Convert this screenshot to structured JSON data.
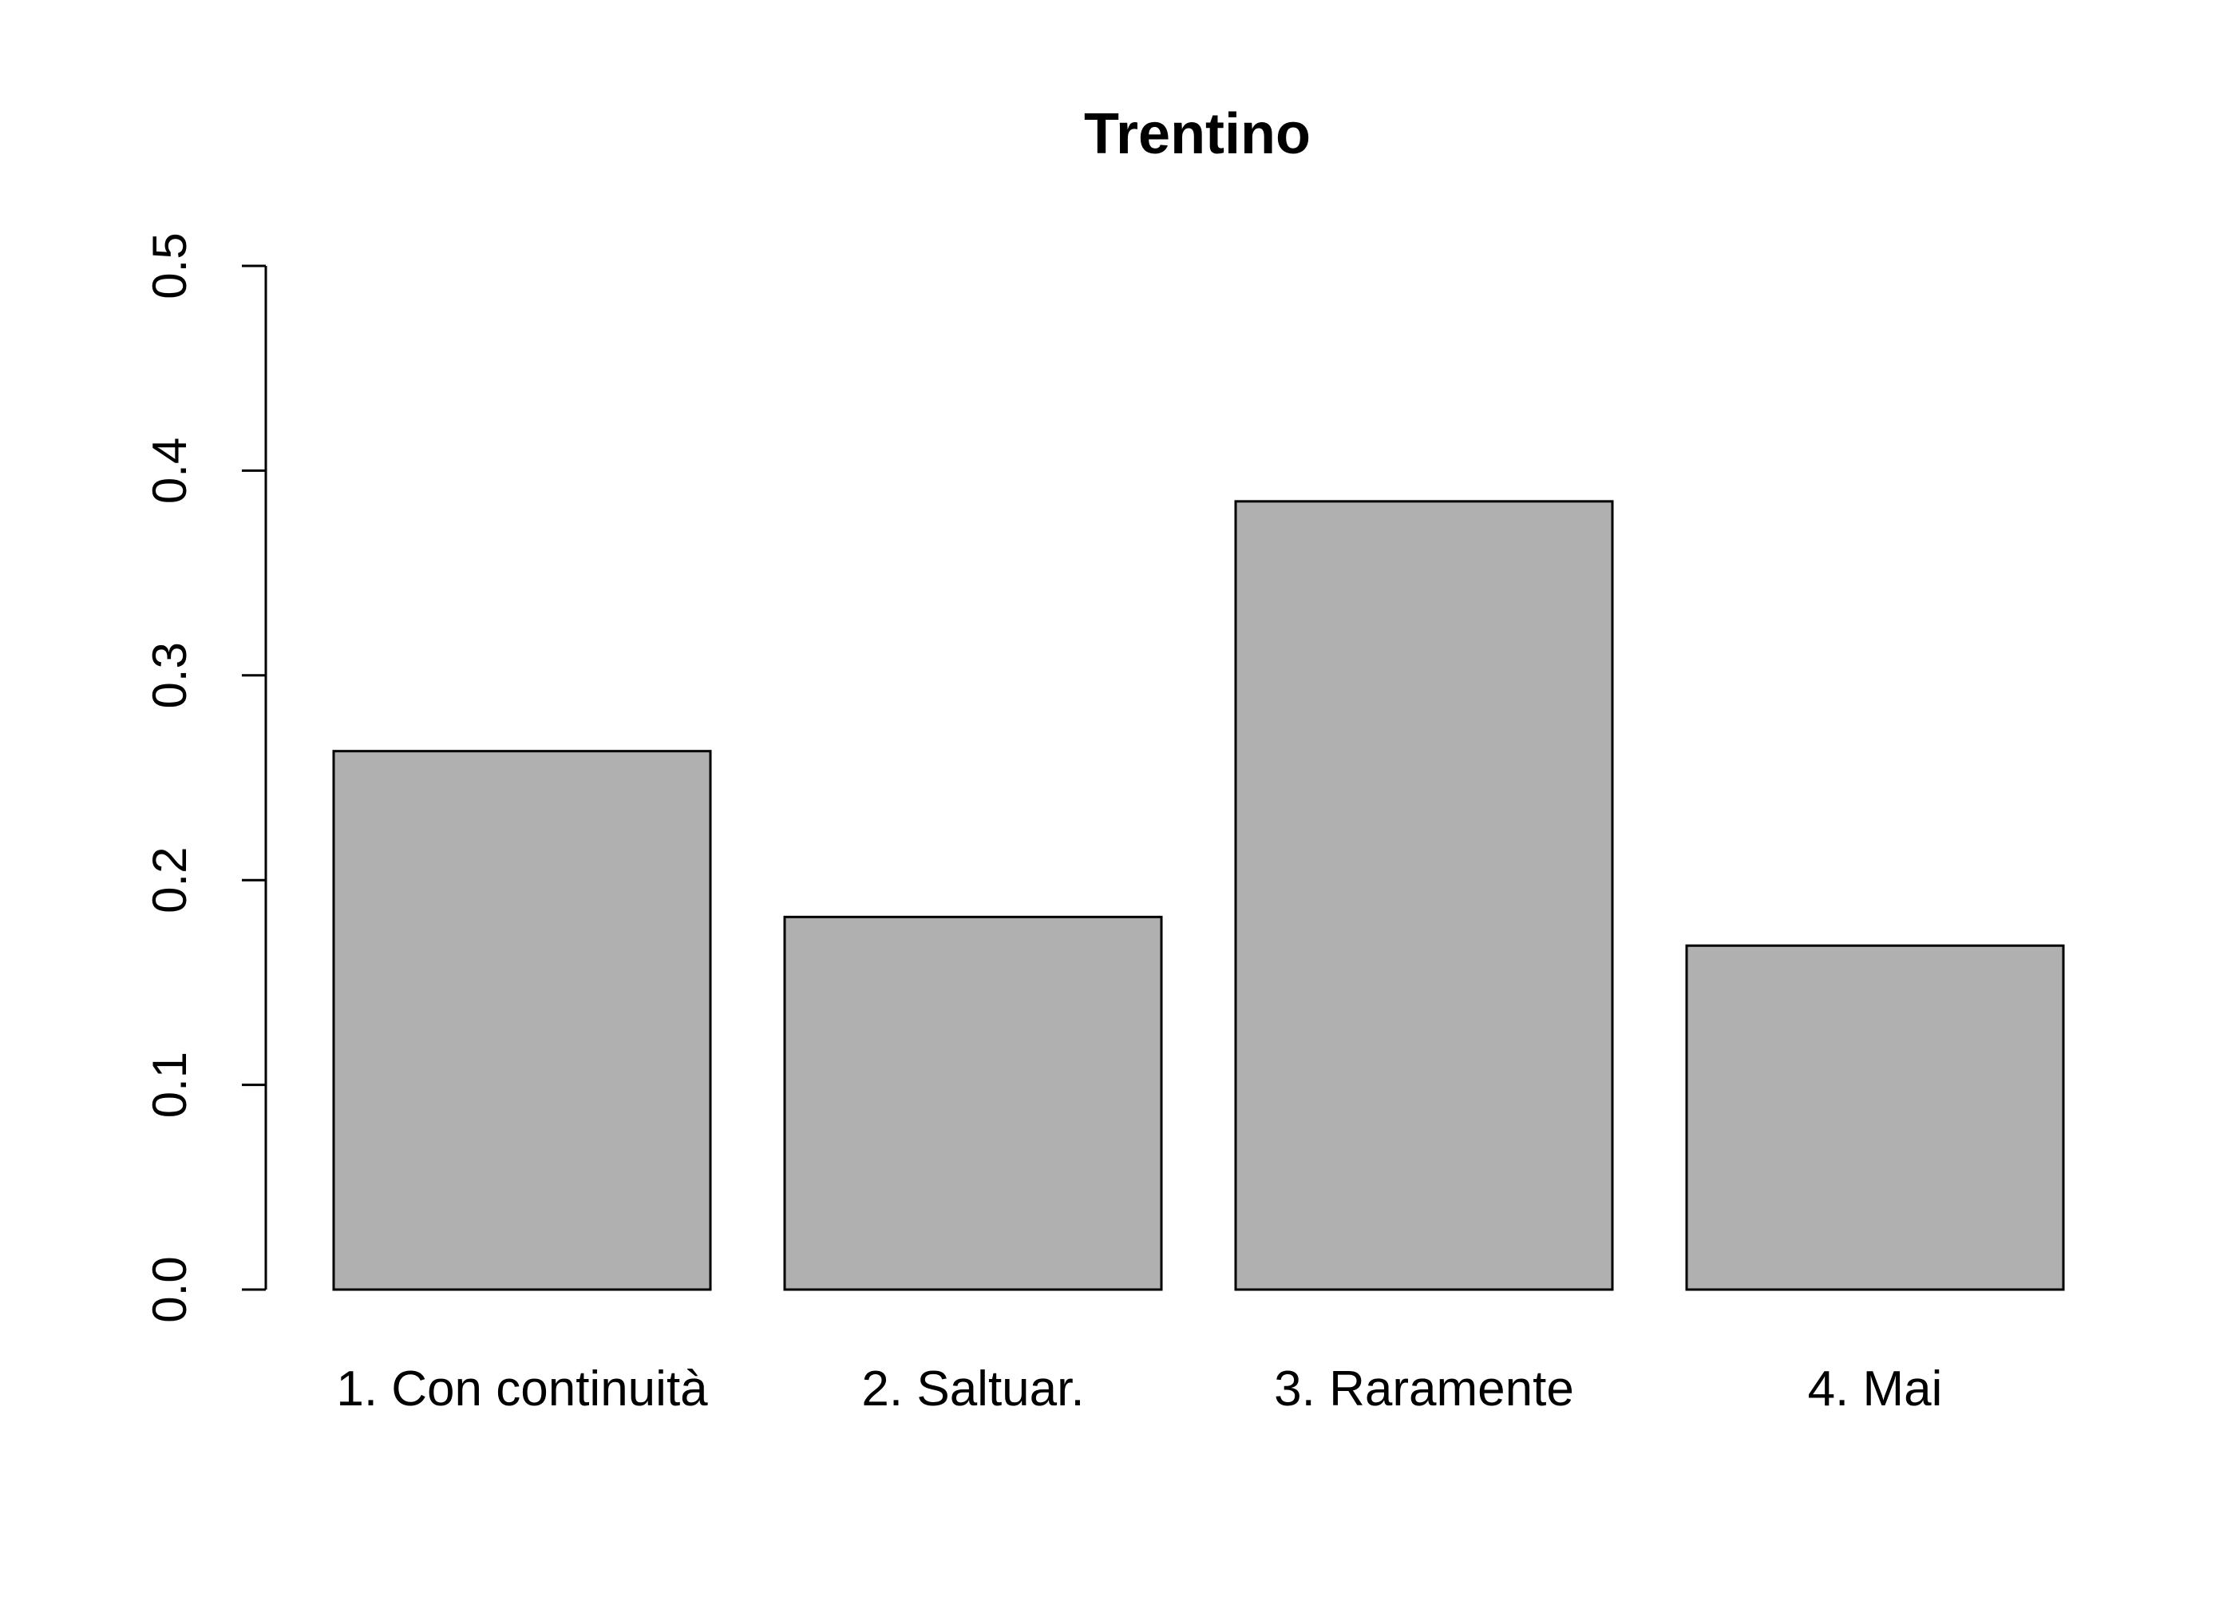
{
  "chart_data": {
    "type": "bar",
    "title": "Trentino",
    "xlabel": "",
    "ylabel": "",
    "categories": [
      "1. Con continuità",
      "2. Saltuar.",
      "3. Raramente",
      "4. Mai"
    ],
    "values": [
      0.263,
      0.182,
      0.385,
      0.168
    ],
    "ylim": [
      0,
      0.5
    ],
    "yticks": [
      "0.0",
      "0.1",
      "0.2",
      "0.3",
      "0.4",
      "0.5"
    ],
    "bar_color": "#b0b0b0",
    "bar_border_color": "#000000",
    "grid": false,
    "legend": "none"
  }
}
